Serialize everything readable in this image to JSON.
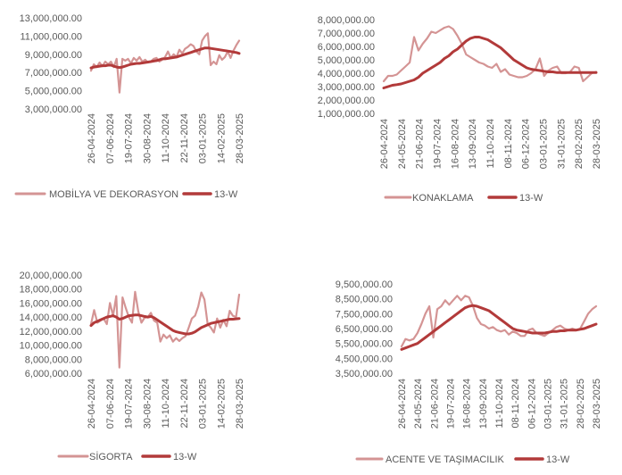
{
  "colors": {
    "weekly": "#D49494",
    "ma": "#B23A3A"
  },
  "chart_data": [
    {
      "type": "line",
      "x_ticks": [
        "26-04-2024",
        "07-06-2024",
        "19-07-2024",
        "30-08-2024",
        "11-10-2024",
        "22-11-2024",
        "03-01-2025",
        "14-02-2025",
        "28-03-2025"
      ],
      "ylim": [
        3000000,
        13000000
      ],
      "y_ticks": [
        "13,000,000.00",
        "11,000,000.00",
        "9,000,000.00",
        "7,000,000.00",
        "5,000,000.00",
        "3,000,000.00"
      ],
      "series": [
        {
          "name": "MOBİLYA VE DEKORASYON",
          "values": [
            7200000,
            7900000,
            7600000,
            8100000,
            7700000,
            8200000,
            7900000,
            8200000,
            7600000,
            8500000,
            4800000,
            8500000,
            8300000,
            8500000,
            8000000,
            8600000,
            8300000,
            8700000,
            8200000,
            8400000,
            8100000,
            8200000,
            8500000,
            8600000,
            8200000,
            8400000,
            8700000,
            9300000,
            8600000,
            9000000,
            8700000,
            9500000,
            9100000,
            9600000,
            9800000,
            10100000,
            9900000,
            9300000,
            9000000,
            10500000,
            11000000,
            11300000,
            7800000,
            8200000,
            7900000,
            8900000,
            8400000,
            8700000,
            9300000,
            8600000,
            9400000,
            10000000,
            10500000
          ]
        },
        {
          "name": "13-W",
          "values": [
            7500000,
            7600000,
            7650000,
            7700000,
            7750000,
            7750000,
            7800000,
            7800000,
            7700000,
            7600000,
            7550000,
            7600000,
            7700000,
            7800000,
            7900000,
            7950000,
            8000000,
            8000000,
            8050000,
            8100000,
            8150000,
            8200000,
            8250000,
            8300000,
            8400000,
            8500000,
            8500000,
            8550000,
            8600000,
            8650000,
            8700000,
            8800000,
            8900000,
            9000000,
            9100000,
            9200000,
            9300000,
            9400000,
            9500000,
            9600000,
            9700000,
            9700000,
            9650000,
            9600000,
            9550000,
            9500000,
            9450000,
            9400000,
            9350000,
            9300000,
            9250000,
            9200000,
            9100000
          ]
        }
      ]
    },
    {
      "type": "line",
      "x_ticks": [
        "26-04-2024",
        "24-05-2024",
        "21-06-2024",
        "19-07-2024",
        "16-08-2024",
        "13-09-2024",
        "11-10-2024",
        "08-11-2024",
        "06-12-2024",
        "03-01-2025",
        "31-01-2025",
        "28-02-2025",
        "28-03-2025"
      ],
      "ylim": [
        1000000,
        8000000
      ],
      "y_ticks": [
        "8,000,000.00",
        "7,000,000.00",
        "6,000,000.00",
        "5,000,000.00",
        "4,000,000.00",
        "3,000,000.00",
        "2,000,000.00",
        "1,000,000.00"
      ],
      "series": [
        {
          "name": "KONAKLAMA",
          "values": [
            3400000,
            3800000,
            3800000,
            3900000,
            4200000,
            4500000,
            4800000,
            6700000,
            5700000,
            6200000,
            6600000,
            7100000,
            7000000,
            7200000,
            7400000,
            7500000,
            7300000,
            6800000,
            6200000,
            5400000,
            5200000,
            5000000,
            4800000,
            4700000,
            4500000,
            4400000,
            4700000,
            4100000,
            4300000,
            3900000,
            3800000,
            3700000,
            3700000,
            3800000,
            4000000,
            4300000,
            5100000,
            3800000,
            4200000,
            4400000,
            4500000,
            4000000,
            4000000,
            4100000,
            4500000,
            4400000,
            3400000,
            3700000,
            4000000,
            4100000
          ]
        },
        {
          "name": "13-W",
          "values": [
            2900000,
            3000000,
            3100000,
            3150000,
            3200000,
            3300000,
            3400000,
            3500000,
            3700000,
            4000000,
            4200000,
            4400000,
            4600000,
            4800000,
            5100000,
            5300000,
            5600000,
            5800000,
            6100000,
            6400000,
            6600000,
            6700000,
            6700000,
            6600000,
            6500000,
            6300000,
            6100000,
            5900000,
            5600000,
            5300000,
            5000000,
            4800000,
            4600000,
            4400000,
            4300000,
            4250000,
            4200000,
            4150000,
            4100000,
            4100000,
            4050000,
            4050000,
            4050000,
            4050000,
            4050000,
            4050000,
            4050000,
            4050000,
            4050000,
            4050000
          ]
        }
      ]
    },
    {
      "type": "line",
      "x_ticks": [
        "26-04-2024",
        "07-06-2024",
        "19-07-2024",
        "30-08-2024",
        "11-10-2024",
        "22-11-2024",
        "03-01-2025",
        "14-02-2025",
        "28-03-2025"
      ],
      "ylim": [
        6000000,
        20000000
      ],
      "y_ticks": [
        "20,000,000.00",
        "18,000,000.00",
        "16,000,000.00",
        "14,000,000.00",
        "12,000,000.00",
        "10,000,000.00",
        "8,000,000.00",
        "6,000,000.00"
      ],
      "series": [
        {
          "name": "SİGORTA",
          "values": [
            13000000,
            15000000,
            13200000,
            13500000,
            13800000,
            13000000,
            16000000,
            14200000,
            17000000,
            6800000,
            16800000,
            15300000,
            14000000,
            13200000,
            17600000,
            14800000,
            13200000,
            13900000,
            14000000,
            14600000,
            13500000,
            13200000,
            10500000,
            11500000,
            11000000,
            11400000,
            10500000,
            11000000,
            10600000,
            11000000,
            11300000,
            12500000,
            13800000,
            14200000,
            15500000,
            17500000,
            16500000,
            13000000,
            12500000,
            11800000,
            13800000,
            12500000,
            13600000,
            12700000,
            14900000,
            14200000,
            14000000,
            17200000
          ]
        },
        {
          "name": "13-W",
          "values": [
            12800000,
            13200000,
            13400000,
            13600000,
            13800000,
            14000000,
            14100000,
            14200000,
            14000000,
            13700000,
            13800000,
            14000000,
            14200000,
            14250000,
            14300000,
            14300000,
            14200000,
            14100000,
            14000000,
            14100000,
            13900000,
            13600000,
            13300000,
            13000000,
            12700000,
            12400000,
            12100000,
            11900000,
            11800000,
            11700000,
            11600000,
            11600000,
            11700000,
            11900000,
            12200000,
            12500000,
            12700000,
            12900000,
            13100000,
            13200000,
            13300000,
            13400000,
            13500000,
            13600000,
            13700000,
            13700000,
            13750000,
            13800000
          ]
        }
      ]
    },
    {
      "type": "line",
      "x_ticks": [
        "26-04-2024",
        "24-05-2024",
        "21-06-2024",
        "19-07-2024",
        "16-08-2024",
        "13-09-2024",
        "11-10-2024",
        "08-11-2024",
        "06-12-2024",
        "03-01-2025",
        "31-01-2025",
        "28-02-2025",
        "28-03-2025"
      ],
      "ylim": [
        3500000,
        9500000
      ],
      "y_ticks": [
        "9,500,000.00",
        "8,500,000.00",
        "7,500,000.00",
        "6,500,000.00",
        "5,500,000.00",
        "4,500,000.00",
        "3,500,000.00"
      ],
      "series": [
        {
          "name": "ACENTE VE TAŞIMACILIK",
          "values": [
            5300000,
            5800000,
            5700000,
            5800000,
            6200000,
            6800000,
            7500000,
            8000000,
            5900000,
            7800000,
            8000000,
            8400000,
            8100000,
            8400000,
            8700000,
            8400000,
            8700000,
            8600000,
            8000000,
            7200000,
            6800000,
            6700000,
            6500000,
            6600000,
            6400000,
            6300000,
            6400000,
            6100000,
            6300000,
            6200000,
            6000000,
            6000000,
            6400000,
            6500000,
            6200000,
            6100000,
            6000000,
            6200000,
            6400000,
            6600000,
            6700000,
            6500000,
            6400000,
            6500000,
            6400000,
            6500000,
            7000000,
            7500000,
            7800000,
            8000000
          ]
        },
        {
          "name": "13-W",
          "values": [
            5100000,
            5200000,
            5300000,
            5400000,
            5500000,
            5700000,
            5900000,
            6100000,
            6300000,
            6500000,
            6700000,
            6900000,
            7100000,
            7300000,
            7500000,
            7700000,
            7900000,
            8000000,
            8050000,
            8000000,
            7900000,
            7800000,
            7700000,
            7500000,
            7300000,
            7100000,
            6900000,
            6700000,
            6500000,
            6400000,
            6350000,
            6300000,
            6250000,
            6200000,
            6200000,
            6200000,
            6200000,
            6250000,
            6300000,
            6300000,
            6350000,
            6350000,
            6400000,
            6400000,
            6400000,
            6450000,
            6500000,
            6600000,
            6700000,
            6800000
          ]
        }
      ]
    }
  ]
}
